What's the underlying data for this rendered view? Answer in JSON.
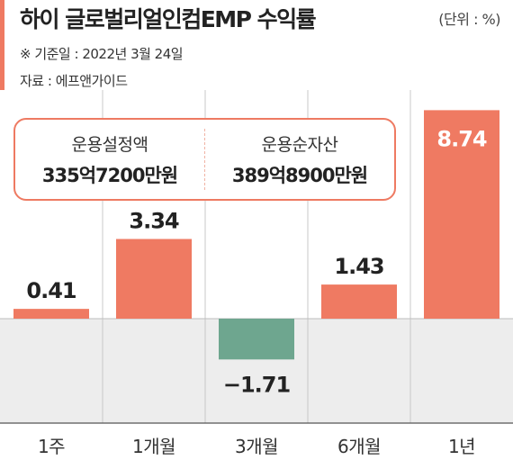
{
  "header": {
    "title": "하이 글로벌리얼인컴EMP 수익률",
    "unit": "(단위 : %)",
    "date_note": "※ 기준일 : 2022년 3월 24일",
    "source_note": "자료 : 에프앤가이드"
  },
  "info_box": {
    "setting_label": "운용설정액",
    "setting_value": "335억7200만원",
    "net_assets_label": "운용순자산",
    "net_assets_value": "389억8900만원"
  },
  "colors": {
    "positive": "#ef7a62",
    "negative": "#6ea68f",
    "accent": "#ef7a62",
    "negative_zone": "#ededed",
    "grid": "#c8c8c8"
  },
  "chart_data": {
    "type": "bar",
    "categories": [
      "1주",
      "1개월",
      "3개월",
      "6개월",
      "1년"
    ],
    "values": [
      0.41,
      3.34,
      -1.71,
      1.43,
      8.74
    ],
    "value_labels": [
      "0.41",
      "3.34",
      "−1.71",
      "1.43",
      "8.74"
    ],
    "title": "하이 글로벌리얼인컴EMP 수익률",
    "xlabel": "",
    "ylabel": "",
    "ylim": [
      -2.6,
      9.6
    ],
    "grid": true,
    "legend": "none"
  }
}
